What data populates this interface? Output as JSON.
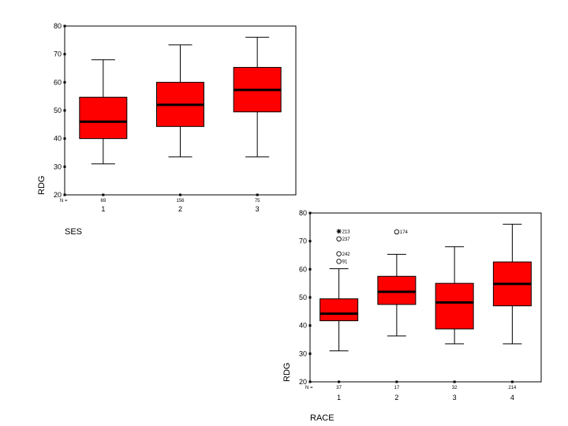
{
  "chart_data": [
    {
      "type": "boxplot",
      "xlabel": "SES",
      "ylabel": "RDG",
      "ylim": [
        20,
        80
      ],
      "yticks": [
        20,
        30,
        40,
        50,
        60,
        70,
        80
      ],
      "n_label": "N =",
      "grid": false,
      "box_color": "#ff0000",
      "categories": [
        "1",
        "2",
        "3"
      ],
      "n": [
        "69",
        "156",
        "75"
      ],
      "boxes": [
        {
          "min": 31,
          "q1": 40,
          "median": 46,
          "q3": 54.7,
          "max": 68
        },
        {
          "min": 33.5,
          "q1": 44.3,
          "median": 52,
          "q3": 60,
          "max": 73.3
        },
        {
          "min": 33.5,
          "q1": 49.5,
          "median": 57.3,
          "q3": 65.3,
          "max": 76
        }
      ],
      "outliers": []
    },
    {
      "type": "boxplot",
      "xlabel": "RACE",
      "ylabel": "RDG",
      "ylim": [
        20,
        80
      ],
      "yticks": [
        20,
        30,
        40,
        50,
        60,
        70,
        80
      ],
      "n_label": "N =",
      "grid": false,
      "box_color": "#ff0000",
      "categories": [
        "1",
        "2",
        "3",
        "4"
      ],
      "n": [
        "37",
        "17",
        "32",
        "214"
      ],
      "boxes": [
        {
          "min": 31,
          "q1": 41.7,
          "median": 44.2,
          "q3": 49.5,
          "max": 60.2
        },
        {
          "min": 36.3,
          "q1": 47.5,
          "median": 52,
          "q3": 57.5,
          "max": 65.3
        },
        {
          "min": 33.5,
          "q1": 38.8,
          "median": 48.2,
          "q3": 55,
          "max": 68
        },
        {
          "min": 33.5,
          "q1": 47,
          "median": 54.8,
          "q3": 62.6,
          "max": 76
        }
      ],
      "outliers": [
        {
          "category": "1",
          "y": 73.5,
          "label": "213",
          "marker": "star"
        },
        {
          "category": "1",
          "y": 70.8,
          "label": "237",
          "marker": "circle"
        },
        {
          "category": "1",
          "y": 65.5,
          "label": "242",
          "marker": "circle"
        },
        {
          "category": "1",
          "y": 62.8,
          "label": "91",
          "marker": "circle"
        },
        {
          "category": "2",
          "y": 73.3,
          "label": "174",
          "marker": "circle"
        }
      ]
    }
  ]
}
